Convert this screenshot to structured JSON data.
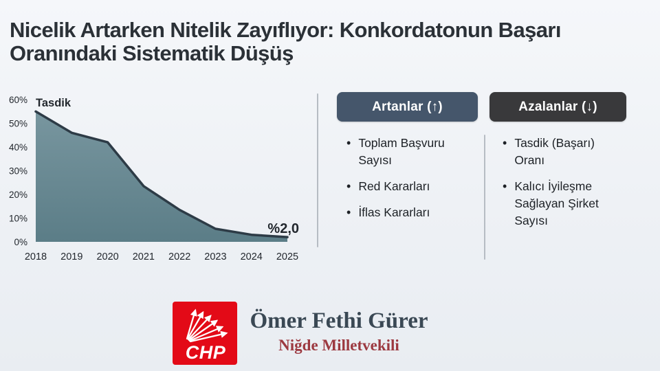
{
  "title_lines": [
    "Nicelik Artarken Nitelik Zayıflıyor: Konkordatonun Başarı",
    "Oranındaki Sistematik Düşüş"
  ],
  "title_full": "Nicelik Artarken Nitelik Zayıflıyor: Konkordatonun Başarı Oranındaki Sistematik Düşüş",
  "chart_data": {
    "type": "area",
    "series_label": "Tasdik",
    "x": [
      "2018",
      "2019",
      "2020",
      "2021",
      "2022",
      "2023",
      "2024",
      "2025"
    ],
    "values": [
      55,
      46,
      42,
      23.5,
      13.5,
      5.5,
      3,
      2
    ],
    "end_label": "%2,0",
    "xlabel": "",
    "ylabel": "",
    "y_ticks": [
      0,
      10,
      20,
      30,
      40,
      50,
      60
    ],
    "y_tick_suffix": "%",
    "ylim": [
      0,
      60
    ],
    "grid": false,
    "legend": "none",
    "area_top_color": "#78969f",
    "area_bottom_color": "#5b7d87",
    "line_color": "#2d3b46",
    "label_color": "#22272d"
  },
  "panels": {
    "increasing": {
      "header": "Artanlar (↑)",
      "header_bg": "#45566b",
      "items": [
        "Toplam Başvuru Sayısı",
        "Red Kararları",
        "İflas Kararları"
      ]
    },
    "decreasing": {
      "header": "Azalanlar (↓)",
      "header_bg": "#39393b",
      "items": [
        "Tasdik (Başarı) Oranı",
        "Kalıcı İyileşme Sağlayan Şirket Sayısı"
      ]
    }
  },
  "footer": {
    "logo_text": "CHP",
    "logo_color": "#e30a17",
    "name": "Ömer Fethi Gürer",
    "role": "Niğde Milletvekili"
  }
}
